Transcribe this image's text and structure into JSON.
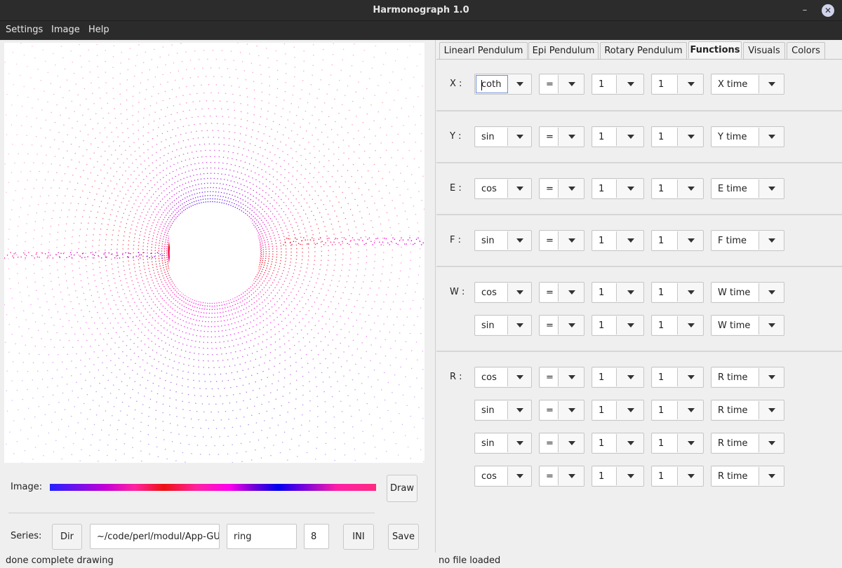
{
  "window": {
    "title": "Harmonograph 1.0",
    "minimize_glyph": "–",
    "maximize_glyph": "❐",
    "close_glyph": "✕"
  },
  "menu": [
    "Settings",
    "Image",
    "Help"
  ],
  "image_row": {
    "label": "Image:",
    "draw_button": "Draw",
    "color_flow": [
      "#2222ff",
      "#c400d6",
      "#ff22a0",
      "#ee1111",
      "#ff22a0",
      "#ff00ee",
      "#7a00d6",
      "#0000ee",
      "#6b00e0",
      "#ff1fa6",
      "#ff2a80"
    ]
  },
  "series_row": {
    "label": "Series:",
    "dir_button": "Dir",
    "path": "~/code/perl/modul/App-GU",
    "name": "ring",
    "number": "8",
    "ini_button": "INI",
    "save_button": "Save"
  },
  "status": {
    "left": "done complete drawing",
    "right": "no file loaded"
  },
  "tabs": [
    {
      "label": "Linearl Pendulum",
      "active": false
    },
    {
      "label": "Epi Pendulum",
      "active": false
    },
    {
      "label": "Rotary Pendulum",
      "active": false
    },
    {
      "label": "Functions",
      "active": true
    },
    {
      "label": "Visuals",
      "active": false
    },
    {
      "label": "Colors",
      "active": false
    }
  ],
  "functions": [
    {
      "label": "X :",
      "rows": [
        {
          "func": "coth",
          "op": "=",
          "a": "1",
          "b": "1",
          "time": "X time"
        }
      ]
    },
    {
      "label": "Y :",
      "rows": [
        {
          "func": "sin",
          "op": "=",
          "a": "1",
          "b": "1",
          "time": "Y time"
        }
      ]
    },
    {
      "label": "E :",
      "rows": [
        {
          "func": "cos",
          "op": "=",
          "a": "1",
          "b": "1",
          "time": "E time"
        }
      ]
    },
    {
      "label": "F :",
      "rows": [
        {
          "func": "sin",
          "op": "=",
          "a": "1",
          "b": "1",
          "time": "F time"
        }
      ]
    },
    {
      "label": "W :",
      "rows": [
        {
          "func": "cos",
          "op": "=",
          "a": "1",
          "b": "1",
          "time": "W time"
        },
        {
          "func": "sin",
          "op": "=",
          "a": "1",
          "b": "1",
          "time": "W time"
        }
      ]
    },
    {
      "label": "R :",
      "rows": [
        {
          "func": "cos",
          "op": "=",
          "a": "1",
          "b": "1",
          "time": "R time"
        },
        {
          "func": "sin",
          "op": "=",
          "a": "1",
          "b": "1",
          "time": "R time"
        },
        {
          "func": "sin",
          "op": "=",
          "a": "1",
          "b": "1",
          "time": "R time"
        },
        {
          "func": "cos",
          "op": "=",
          "a": "1",
          "b": "1",
          "time": "R time"
        }
      ]
    }
  ],
  "focused_field": "functions.0.rows.0.func"
}
